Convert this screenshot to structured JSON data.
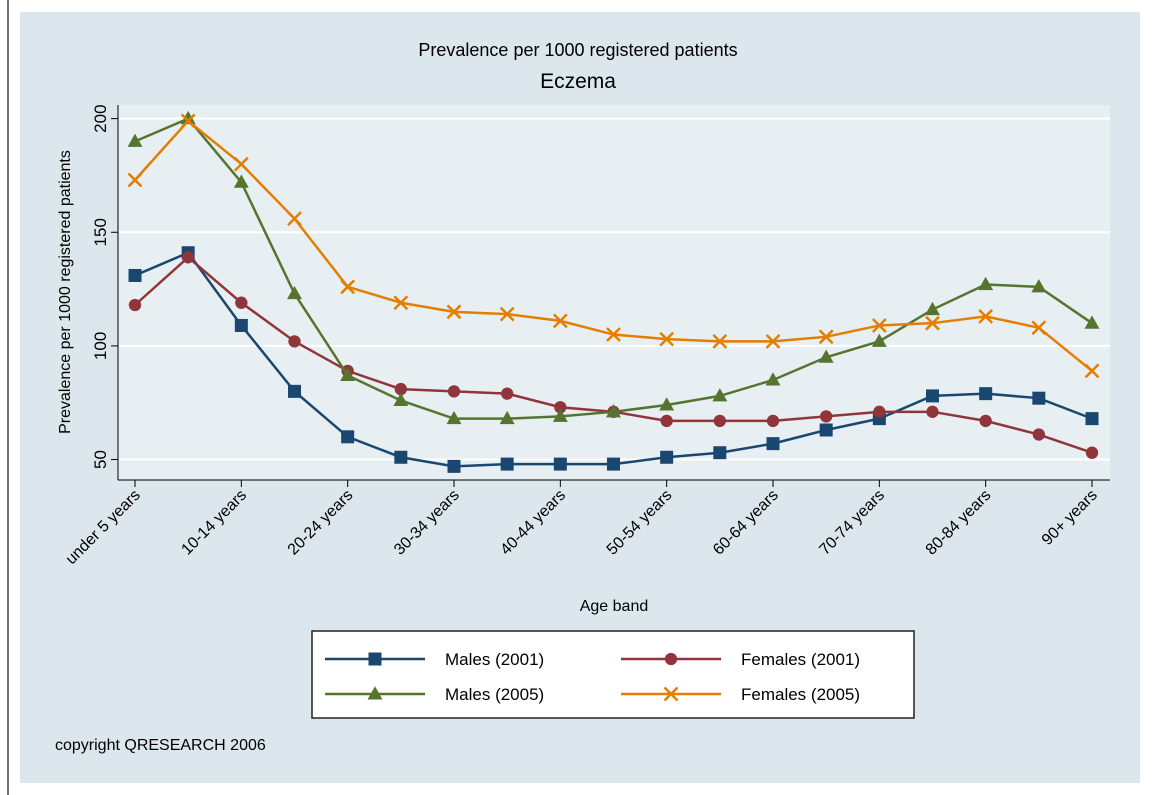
{
  "chart_data": {
    "type": "line",
    "title": "Prevalence per 1000 registered patients",
    "subtitle": "Eczema",
    "x_label": "Age band",
    "y_label": "Prevalence per 1000 registered patients",
    "note": "copyright QRESEARCH 2006",
    "categories": [
      "under 5 years",
      null,
      "10-14 years",
      null,
      "20-24 years",
      null,
      "30-34 years",
      null,
      "40-44 years",
      null,
      "50-54 years",
      null,
      "60-64 years",
      null,
      "70-74 years",
      null,
      "80-84 years",
      null,
      "90+ years"
    ],
    "ylim": [
      41,
      206
    ],
    "yticks": [
      50,
      100,
      150,
      200
    ],
    "grid": true,
    "series": [
      {
        "name": "Males (2001)",
        "color": "#1a476f",
        "marker": "square",
        "values": [
          131,
          141,
          109,
          80,
          60,
          51,
          47,
          48,
          48,
          48,
          51,
          53,
          57,
          63,
          68,
          78,
          79,
          77,
          68
        ]
      },
      {
        "name": "Females (2001)",
        "color": "#90353b",
        "marker": "circle",
        "values": [
          118,
          139,
          119,
          102,
          89,
          81,
          80,
          79,
          73,
          71,
          67,
          67,
          67,
          69,
          71,
          71,
          67,
          61,
          53
        ]
      },
      {
        "name": "Males (2005)",
        "color": "#55752f",
        "marker": "triangle",
        "values": [
          190,
          200,
          172,
          123,
          87,
          76,
          68,
          68,
          69,
          71,
          74,
          78,
          85,
          95,
          102,
          116,
          127,
          126,
          110
        ]
      },
      {
        "name": "Females (2005)",
        "color": "#e37e00",
        "marker": "x",
        "values": [
          173,
          199,
          180,
          156,
          126,
          119,
          115,
          114,
          111,
          105,
          103,
          102,
          102,
          104,
          109,
          110,
          113,
          108,
          89
        ]
      }
    ]
  }
}
